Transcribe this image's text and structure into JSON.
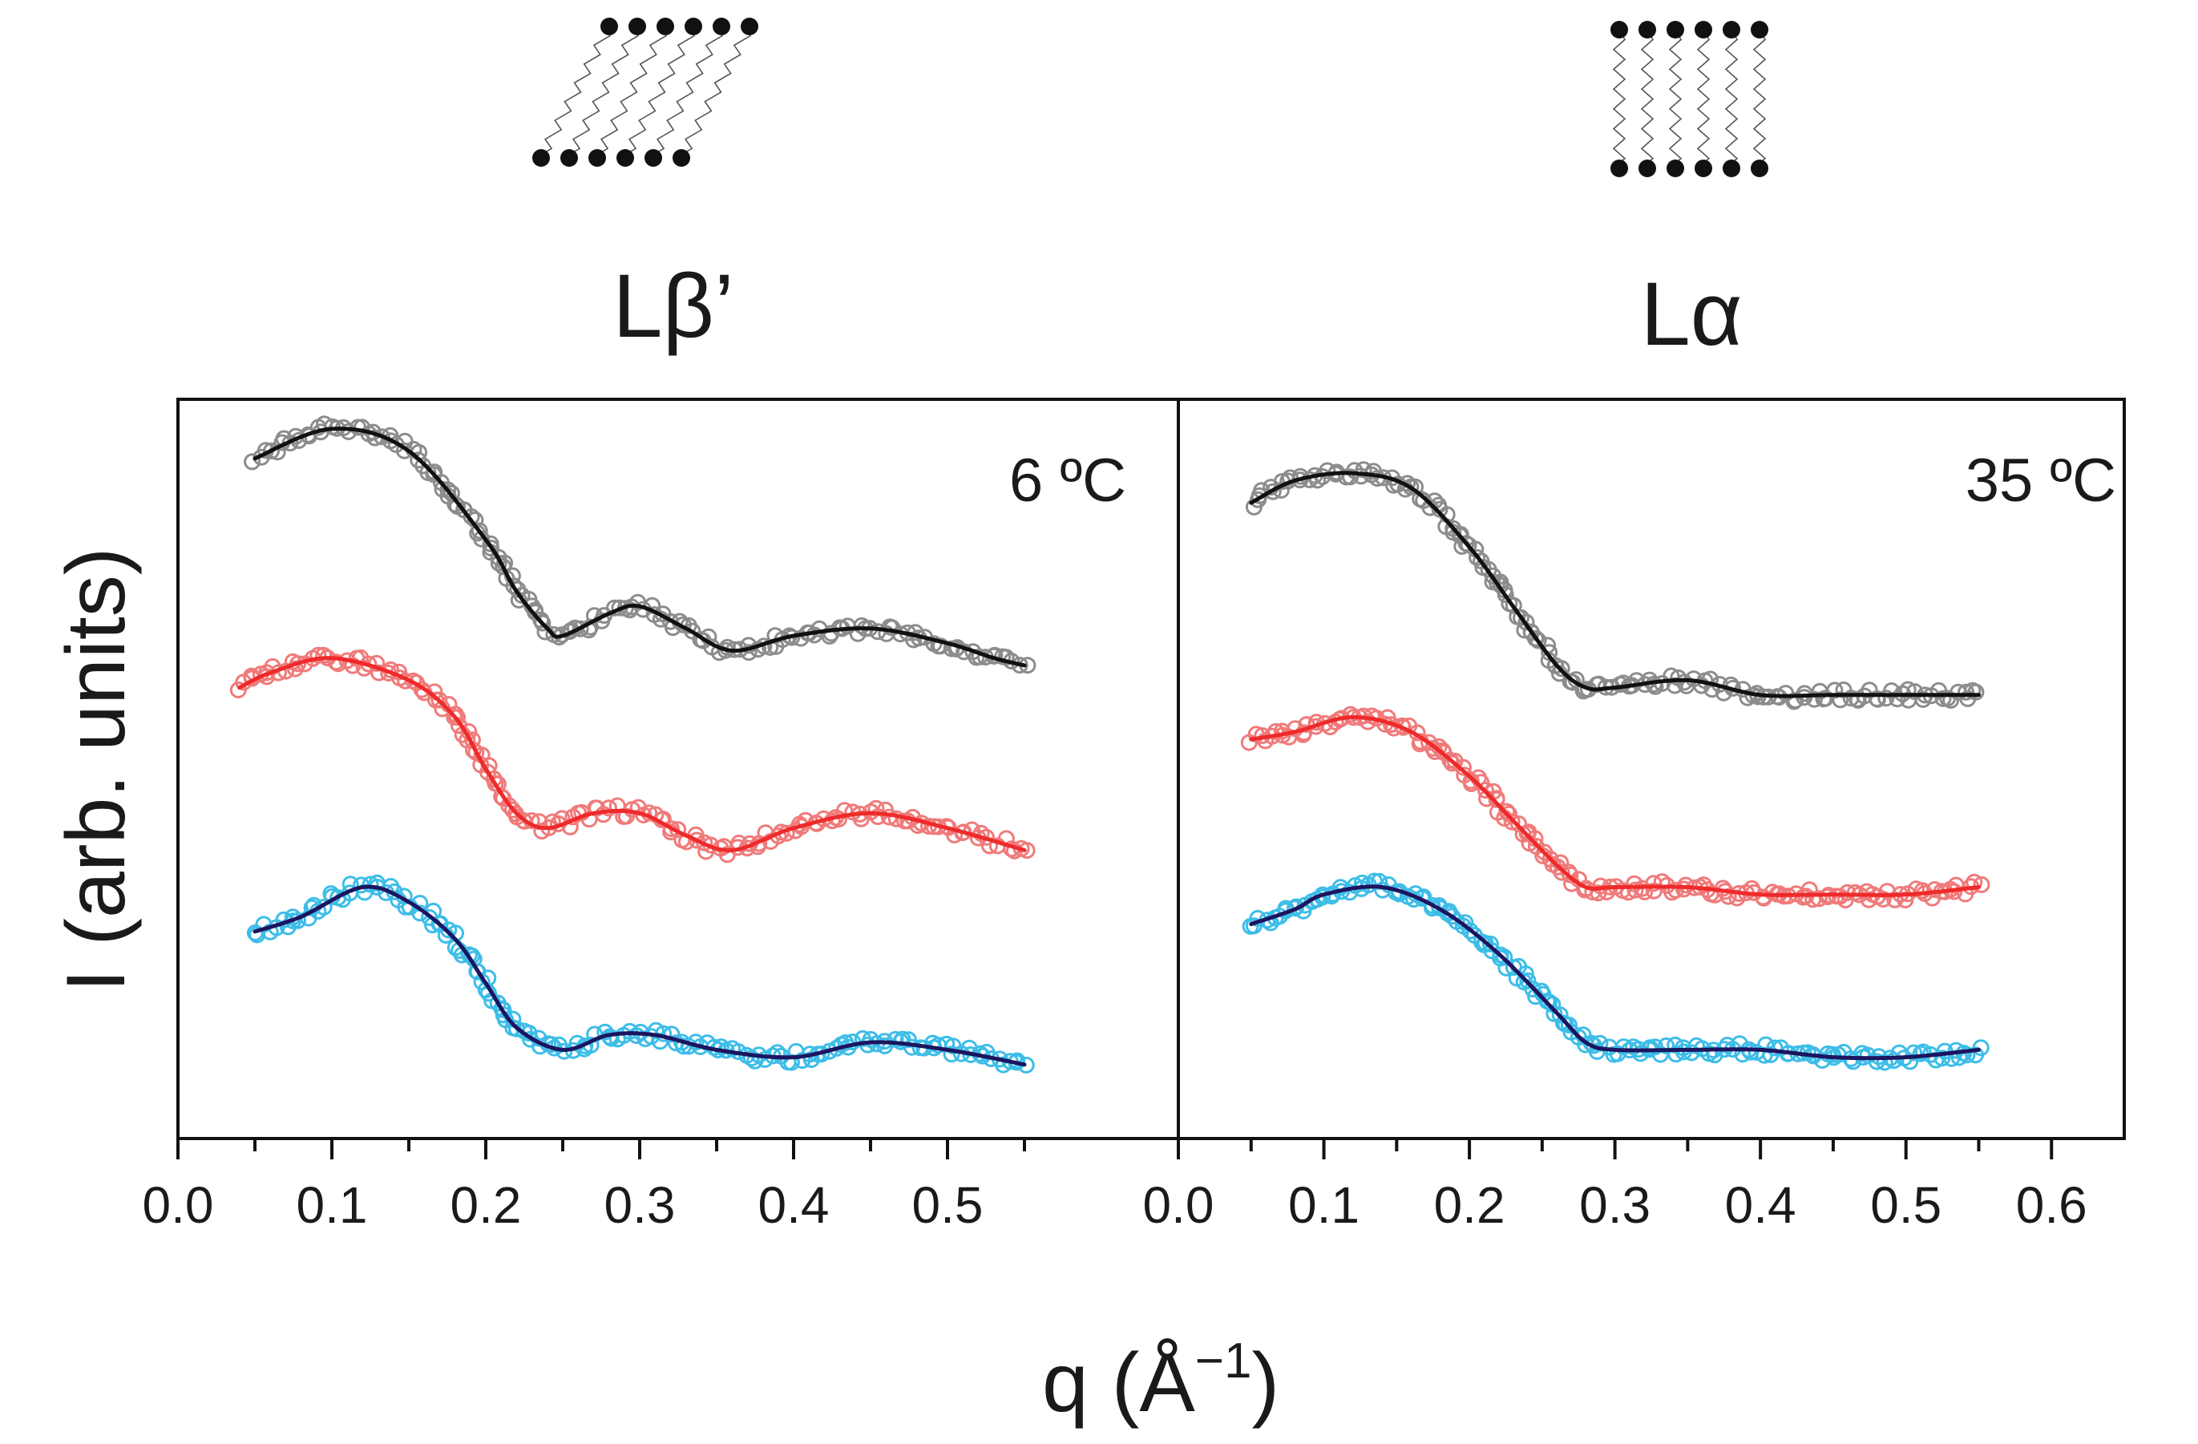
{
  "chart_data": {
    "type": "scatter",
    "ylabel": "I (arb. units)",
    "xlabel_prefix": "q (Å",
    "xlabel_sup": "−1",
    "xlabel_suffix": ")",
    "colors": {
      "black_points": "#8c8c8c",
      "black_fit": "#111111",
      "red_points": "#f07a7a",
      "red_fit": "#ee2a2a",
      "blue_points": "#3dbde8",
      "blue_fit": "#1c1560"
    },
    "panels": [
      {
        "phase": "Lβ’",
        "temperature": "6 ºC",
        "xlim": [
          0.0,
          0.65
        ],
        "xticks": [
          0.0,
          0.1,
          0.2,
          0.3,
          0.4,
          0.5
        ],
        "xtick_labels": [
          "0.0",
          "0.1",
          "0.2",
          "0.3",
          "0.4",
          "0.5"
        ],
        "ylim": [
          0,
          10
        ],
        "series": [
          {
            "name": "black",
            "points_color": "#8c8c8c",
            "fit_color": "#111111",
            "x": [
              0.05,
              0.1,
              0.15,
              0.2,
              0.22,
              0.24,
              0.25,
              0.28,
              0.3,
              0.33,
              0.36,
              0.4,
              0.45,
              0.5,
              0.53,
              0.55
            ],
            "y": [
              9.2,
              9.6,
              9.3,
              8.1,
              7.4,
              6.9,
              6.8,
              7.1,
              7.2,
              6.9,
              6.6,
              6.8,
              6.9,
              6.7,
              6.5,
              6.4
            ]
          },
          {
            "name": "red",
            "points_color": "#f07a7a",
            "fit_color": "#ee2a2a",
            "x": [
              0.04,
              0.06,
              0.1,
              0.15,
              0.18,
              0.2,
              0.22,
              0.24,
              0.27,
              0.3,
              0.33,
              0.36,
              0.4,
              0.45,
              0.5,
              0.55
            ],
            "y": [
              6.1,
              6.3,
              6.5,
              6.2,
              5.7,
              5.0,
              4.4,
              4.2,
              4.4,
              4.4,
              4.1,
              3.9,
              4.2,
              4.4,
              4.2,
              3.9
            ]
          },
          {
            "name": "blue",
            "points_color": "#3dbde8",
            "fit_color": "#1c1560",
            "x": [
              0.05,
              0.08,
              0.12,
              0.15,
              0.18,
              0.2,
              0.22,
              0.25,
              0.28,
              0.31,
              0.35,
              0.4,
              0.45,
              0.5,
              0.55
            ],
            "y": [
              2.8,
              3.0,
              3.4,
              3.2,
              2.7,
              2.1,
              1.5,
              1.2,
              1.4,
              1.4,
              1.2,
              1.1,
              1.3,
              1.2,
              1.0
            ]
          }
        ]
      },
      {
        "phase": "Lα",
        "temperature": "35 ºC",
        "xlim": [
          0.0,
          0.65
        ],
        "xticks": [
          0.0,
          0.1,
          0.2,
          0.3,
          0.4,
          0.5,
          0.6
        ],
        "xtick_labels": [
          "0.0",
          "0.1",
          "0.2",
          "0.3",
          "0.4",
          "0.5",
          "0.6"
        ],
        "ylim": [
          0,
          10
        ],
        "series": [
          {
            "name": "black",
            "points_color": "#8c8c8c",
            "fit_color": "#111111",
            "x": [
              0.05,
              0.08,
              0.12,
              0.16,
              0.2,
              0.23,
              0.26,
              0.28,
              0.3,
              0.35,
              0.4,
              0.45,
              0.5,
              0.55
            ],
            "y": [
              8.6,
              8.9,
              9.0,
              8.8,
              8.0,
              7.2,
              6.4,
              6.1,
              6.1,
              6.2,
              6.0,
              6.0,
              6.0,
              6.0
            ]
          },
          {
            "name": "red",
            "points_color": "#f07a7a",
            "fit_color": "#ee2a2a",
            "x": [
              0.05,
              0.08,
              0.12,
              0.16,
              0.2,
              0.23,
              0.26,
              0.28,
              0.3,
              0.35,
              0.4,
              0.45,
              0.5,
              0.55
            ],
            "y": [
              5.4,
              5.5,
              5.7,
              5.5,
              4.9,
              4.3,
              3.7,
              3.4,
              3.4,
              3.4,
              3.3,
              3.3,
              3.3,
              3.4
            ]
          },
          {
            "name": "blue",
            "points_color": "#3dbde8",
            "fit_color": "#1c1560",
            "x": [
              0.05,
              0.08,
              0.1,
              0.14,
              0.18,
              0.22,
              0.26,
              0.28,
              0.3,
              0.35,
              0.4,
              0.45,
              0.5,
              0.55
            ],
            "y": [
              2.9,
              3.1,
              3.3,
              3.4,
              3.1,
              2.5,
              1.7,
              1.3,
              1.2,
              1.2,
              1.2,
              1.1,
              1.1,
              1.2
            ]
          }
        ]
      }
    ]
  }
}
